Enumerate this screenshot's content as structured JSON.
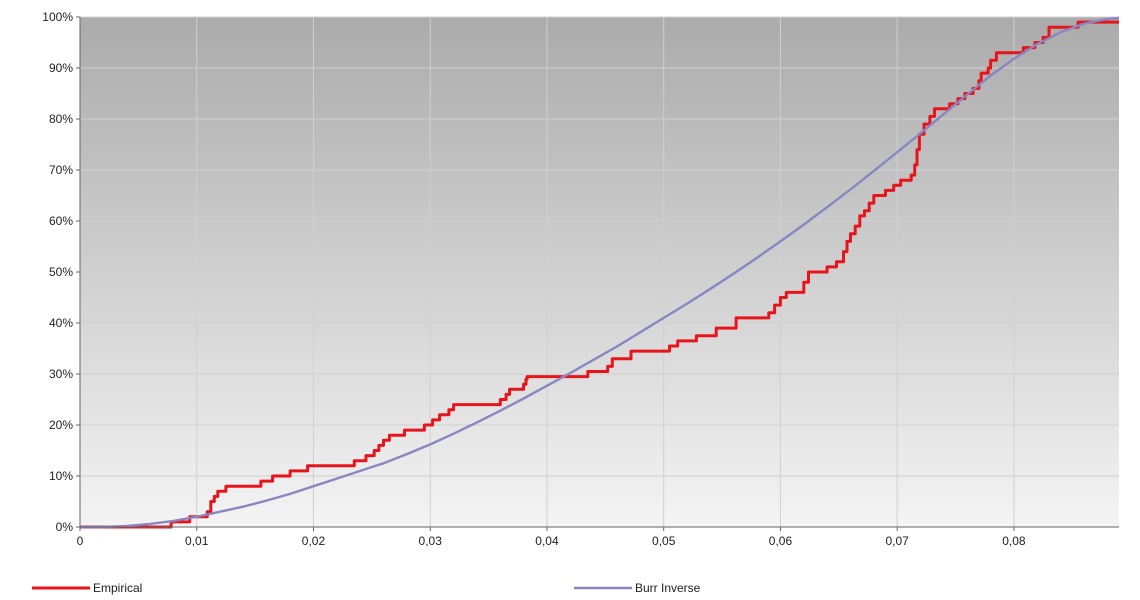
{
  "chart_data": {
    "type": "line",
    "title": "",
    "xlabel": "",
    "ylabel": "",
    "xlim": [
      0,
      0.089
    ],
    "ylim": [
      0,
      100
    ],
    "x_ticks": [
      0,
      0.01,
      0.02,
      0.03,
      0.04,
      0.05,
      0.06,
      0.07,
      0.08
    ],
    "x_tick_labels": [
      "0",
      "0,01",
      "0,02",
      "0,03",
      "0,04",
      "0,05",
      "0,06",
      "0,07",
      "0,08"
    ],
    "y_ticks": [
      0,
      10,
      20,
      30,
      40,
      50,
      60,
      70,
      80,
      90,
      100
    ],
    "y_tick_labels": [
      "0%",
      "10%",
      "20%",
      "30%",
      "40%",
      "50%",
      "60%",
      "70%",
      "80%",
      "90%",
      "100%"
    ],
    "grid": true,
    "legend_position": "bottom",
    "series": [
      {
        "name": "Empirical",
        "color": "#e8141c",
        "step": true,
        "points": [
          [
            0,
            0
          ],
          [
            0.0078,
            0
          ],
          [
            0.0078,
            1
          ],
          [
            0.0094,
            1
          ],
          [
            0.0094,
            2
          ],
          [
            0.0109,
            2
          ],
          [
            0.0109,
            3
          ],
          [
            0.0112,
            3
          ],
          [
            0.0112,
            5
          ],
          [
            0.0115,
            5
          ],
          [
            0.0115,
            6
          ],
          [
            0.0118,
            6
          ],
          [
            0.0118,
            7
          ],
          [
            0.0125,
            7
          ],
          [
            0.0125,
            8
          ],
          [
            0.0155,
            8
          ],
          [
            0.0155,
            9
          ],
          [
            0.0165,
            9
          ],
          [
            0.0165,
            10
          ],
          [
            0.018,
            10
          ],
          [
            0.018,
            11
          ],
          [
            0.0195,
            11
          ],
          [
            0.0195,
            12
          ],
          [
            0.0235,
            12
          ],
          [
            0.0235,
            13
          ],
          [
            0.0245,
            13
          ],
          [
            0.0245,
            14
          ],
          [
            0.0252,
            14
          ],
          [
            0.0252,
            15
          ],
          [
            0.0256,
            15
          ],
          [
            0.0256,
            16
          ],
          [
            0.026,
            16
          ],
          [
            0.026,
            17
          ],
          [
            0.0265,
            17
          ],
          [
            0.0265,
            18
          ],
          [
            0.0278,
            18
          ],
          [
            0.0278,
            19
          ],
          [
            0.0295,
            19
          ],
          [
            0.0295,
            20
          ],
          [
            0.0302,
            20
          ],
          [
            0.0302,
            21
          ],
          [
            0.0308,
            21
          ],
          [
            0.0308,
            22
          ],
          [
            0.0316,
            22
          ],
          [
            0.0316,
            23
          ],
          [
            0.032,
            23
          ],
          [
            0.032,
            24
          ],
          [
            0.036,
            24
          ],
          [
            0.036,
            25
          ],
          [
            0.0365,
            25
          ],
          [
            0.0365,
            26
          ],
          [
            0.0368,
            26
          ],
          [
            0.0368,
            27
          ],
          [
            0.038,
            27
          ],
          [
            0.038,
            28
          ],
          [
            0.0382,
            28
          ],
          [
            0.0382,
            29
          ],
          [
            0.0383,
            29
          ],
          [
            0.0383,
            29.5
          ],
          [
            0.0435,
            29.5
          ],
          [
            0.0435,
            30.5
          ],
          [
            0.0452,
            30.5
          ],
          [
            0.0452,
            31.5
          ],
          [
            0.0456,
            31.5
          ],
          [
            0.0456,
            33
          ],
          [
            0.0472,
            33
          ],
          [
            0.0472,
            34.5
          ],
          [
            0.0505,
            34.5
          ],
          [
            0.0505,
            35.5
          ],
          [
            0.0512,
            35.5
          ],
          [
            0.0512,
            36.5
          ],
          [
            0.0528,
            36.5
          ],
          [
            0.0528,
            37.5
          ],
          [
            0.0545,
            37.5
          ],
          [
            0.0545,
            39
          ],
          [
            0.0562,
            39
          ],
          [
            0.0562,
            41
          ],
          [
            0.059,
            41
          ],
          [
            0.059,
            42
          ],
          [
            0.0595,
            42
          ],
          [
            0.0595,
            43.5
          ],
          [
            0.06,
            43.5
          ],
          [
            0.06,
            45
          ],
          [
            0.0605,
            45
          ],
          [
            0.0605,
            46
          ],
          [
            0.062,
            46
          ],
          [
            0.062,
            48
          ],
          [
            0.0624,
            48
          ],
          [
            0.0624,
            50
          ],
          [
            0.064,
            50
          ],
          [
            0.064,
            51
          ],
          [
            0.0648,
            51
          ],
          [
            0.0648,
            52
          ],
          [
            0.0654,
            52
          ],
          [
            0.0654,
            54
          ],
          [
            0.0657,
            54
          ],
          [
            0.0657,
            56
          ],
          [
            0.066,
            56
          ],
          [
            0.066,
            57.5
          ],
          [
            0.0664,
            57.5
          ],
          [
            0.0664,
            59
          ],
          [
            0.0668,
            59
          ],
          [
            0.0668,
            61
          ],
          [
            0.0672,
            61
          ],
          [
            0.0672,
            62
          ],
          [
            0.0676,
            62
          ],
          [
            0.0676,
            63.5
          ],
          [
            0.068,
            63.5
          ],
          [
            0.068,
            65
          ],
          [
            0.069,
            65
          ],
          [
            0.069,
            66
          ],
          [
            0.0697,
            66
          ],
          [
            0.0697,
            67
          ],
          [
            0.0703,
            67
          ],
          [
            0.0703,
            68
          ],
          [
            0.0712,
            68
          ],
          [
            0.0712,
            69
          ],
          [
            0.0715,
            69
          ],
          [
            0.0715,
            71
          ],
          [
            0.0717,
            71
          ],
          [
            0.0717,
            74
          ],
          [
            0.0719,
            74
          ],
          [
            0.0719,
            77
          ],
          [
            0.0723,
            77
          ],
          [
            0.0723,
            79
          ],
          [
            0.0728,
            79
          ],
          [
            0.0728,
            80.5
          ],
          [
            0.0732,
            80.5
          ],
          [
            0.0732,
            82
          ],
          [
            0.0745,
            82
          ],
          [
            0.0745,
            83
          ],
          [
            0.0752,
            83
          ],
          [
            0.0752,
            84
          ],
          [
            0.0758,
            84
          ],
          [
            0.0758,
            85
          ],
          [
            0.0765,
            85
          ],
          [
            0.0765,
            86
          ],
          [
            0.077,
            86
          ],
          [
            0.077,
            87.5
          ],
          [
            0.0772,
            87.5
          ],
          [
            0.0772,
            89
          ],
          [
            0.0778,
            89
          ],
          [
            0.0778,
            90
          ],
          [
            0.078,
            90
          ],
          [
            0.078,
            91.5
          ],
          [
            0.0785,
            91.5
          ],
          [
            0.0785,
            93
          ],
          [
            0.0808,
            93
          ],
          [
            0.0808,
            94
          ],
          [
            0.0818,
            94
          ],
          [
            0.0818,
            95
          ],
          [
            0.0825,
            95
          ],
          [
            0.0825,
            96
          ],
          [
            0.083,
            96
          ],
          [
            0.083,
            98
          ],
          [
            0.0855,
            98
          ],
          [
            0.0855,
            99
          ],
          [
            0.089,
            99
          ]
        ]
      },
      {
        "name": "Burr Inverse",
        "color": "#8a86c2",
        "step": false,
        "points": [
          [
            0,
            0
          ],
          [
            0.002,
            0
          ],
          [
            0.004,
            0.2
          ],
          [
            0.006,
            0.6
          ],
          [
            0.008,
            1.2
          ],
          [
            0.01,
            2
          ],
          [
            0.012,
            3
          ],
          [
            0.014,
            4
          ],
          [
            0.016,
            5.2
          ],
          [
            0.018,
            6.5
          ],
          [
            0.02,
            8
          ],
          [
            0.022,
            9.5
          ],
          [
            0.024,
            11
          ],
          [
            0.026,
            12.5
          ],
          [
            0.028,
            14.3
          ],
          [
            0.03,
            16.2
          ],
          [
            0.032,
            18.3
          ],
          [
            0.034,
            20.5
          ],
          [
            0.036,
            22.8
          ],
          [
            0.038,
            25.2
          ],
          [
            0.04,
            27.7
          ],
          [
            0.042,
            30.2
          ],
          [
            0.044,
            32.8
          ],
          [
            0.046,
            35.4
          ],
          [
            0.048,
            38.2
          ],
          [
            0.05,
            41
          ],
          [
            0.052,
            43.8
          ],
          [
            0.054,
            46.7
          ],
          [
            0.056,
            49.7
          ],
          [
            0.058,
            52.8
          ],
          [
            0.06,
            56
          ],
          [
            0.062,
            59.3
          ],
          [
            0.064,
            62.7
          ],
          [
            0.066,
            66.2
          ],
          [
            0.068,
            69.8
          ],
          [
            0.07,
            73.5
          ],
          [
            0.072,
            77.2
          ],
          [
            0.074,
            81
          ],
          [
            0.076,
            84.8
          ],
          [
            0.078,
            88.5
          ],
          [
            0.08,
            91.8
          ],
          [
            0.082,
            94.7
          ],
          [
            0.084,
            97
          ],
          [
            0.086,
            98.7
          ],
          [
            0.088,
            99.6
          ],
          [
            0.089,
            99.8
          ]
        ]
      }
    ]
  }
}
